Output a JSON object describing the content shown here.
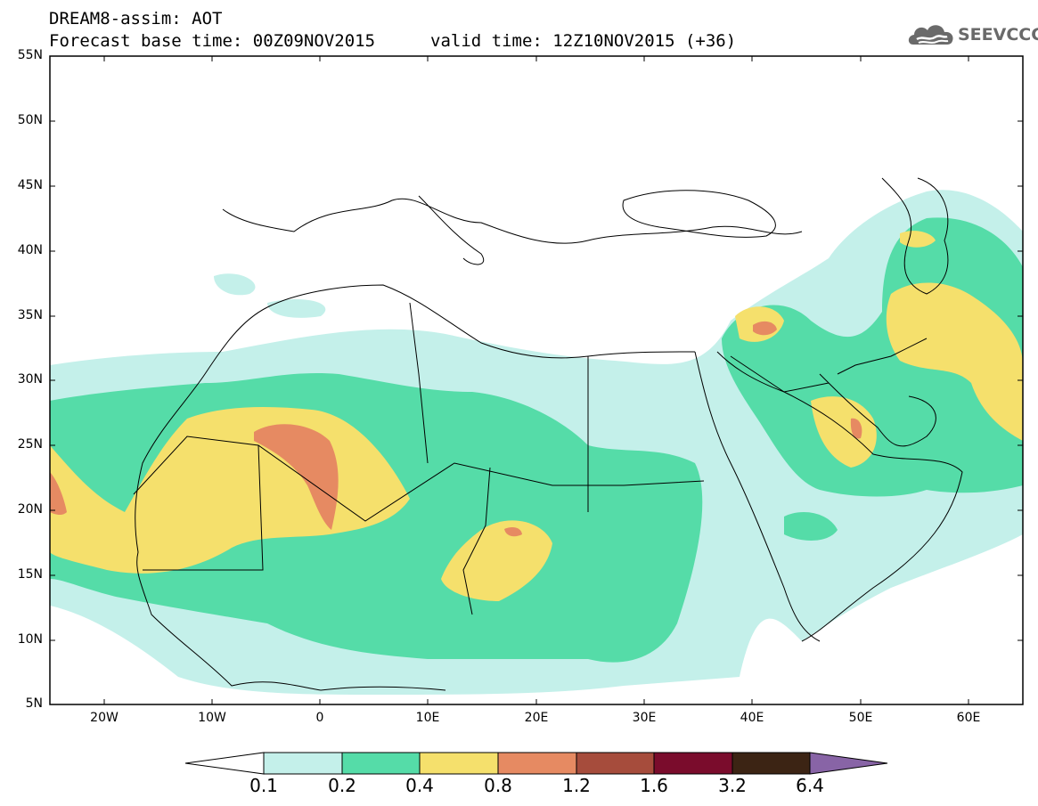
{
  "header": {
    "title": "DREAM8-assim: AOT",
    "forecast_base": "Forecast base time: 00Z09NOV2015",
    "valid_time": "valid time: 12Z10NOV2015 (+36)"
  },
  "logo": {
    "text": "SEEVCCC",
    "icon": "cloud-icon"
  },
  "map": {
    "lat_labels": [
      "55N",
      "50N",
      "45N",
      "40N",
      "35N",
      "30N",
      "25N",
      "20N",
      "15N",
      "10N",
      "5N"
    ],
    "lon_labels": [
      "20W",
      "10W",
      "0",
      "10E",
      "20E",
      "30E",
      "40E",
      "50E",
      "60E"
    ]
  },
  "colorbar": {
    "labels": [
      "0.1",
      "0.2",
      "0.4",
      "0.8",
      "1.2",
      "1.6",
      "3.2",
      "6.4"
    ],
    "colors": [
      "#ffffff",
      "#c4f0ea",
      "#55dca8",
      "#f5e06c",
      "#e68a62",
      "#a64c3c",
      "#7a0c2c",
      "#3c2414",
      "#8864a6"
    ]
  },
  "colors": {
    "aot_0_1": "#c4f0ea",
    "aot_0_2": "#55dca8",
    "aot_0_4": "#f5e06c",
    "aot_0_8": "#e68a62"
  }
}
